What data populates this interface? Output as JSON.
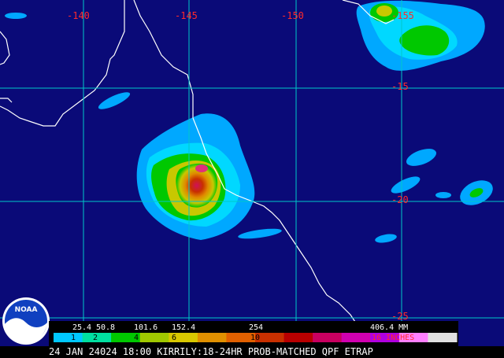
{
  "map": {
    "background_color": "#0a0a78",
    "grid_color": "#00c8c8",
    "coast_color": "#ffffff",
    "longitude_labels": [
      "-140",
      "-145",
      "-150",
      "-155"
    ],
    "latitude_labels": [
      "-15",
      "-20",
      "-25"
    ],
    "label_color": "#ff2a2a"
  },
  "legend": {
    "mm_ticks": [
      "25.4",
      "50.8",
      "101.6",
      "152.4",
      "254",
      "406.4 MM"
    ],
    "inch_labels": [
      "1",
      "2",
      "4",
      "6",
      "10",
      "16 INCHES"
    ],
    "color_stops": [
      "#00c8ff",
      "#00e0a0",
      "#00c800",
      "#a0c800",
      "#d8c800",
      "#e09000",
      "#e06000",
      "#c83000",
      "#b80000",
      "#c80060",
      "#d000b0",
      "#b000e0",
      "#ff80ff",
      "#e0e0e0"
    ]
  },
  "caption": "24 JAN 24024 18:00 KIRRILY:18-24HR PROB-MATCHED QPF ETRAP",
  "logo": {
    "text": "NOAA"
  }
}
